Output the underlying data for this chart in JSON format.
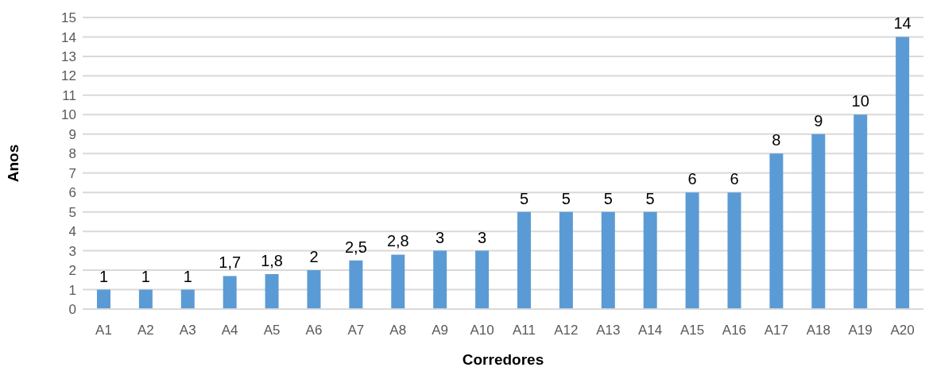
{
  "chart_data": {
    "type": "bar",
    "xlabel": "Corredores",
    "ylabel": "Anos",
    "categories": [
      "A1",
      "A2",
      "A3",
      "A4",
      "A5",
      "A6",
      "A7",
      "A8",
      "A9",
      "A10",
      "A11",
      "A12",
      "A13",
      "A14",
      "A15",
      "A16",
      "A17",
      "A18",
      "A19",
      "A20"
    ],
    "values": [
      1,
      1,
      1,
      1.7,
      1.8,
      2,
      2.5,
      2.8,
      3,
      3,
      5,
      5,
      5,
      5,
      6,
      6,
      8,
      9,
      10,
      14
    ],
    "value_labels": [
      "1",
      "1",
      "1",
      "1,7",
      "1,8",
      "2",
      "2,5",
      "2,8",
      "3",
      "3",
      "5",
      "5",
      "5",
      "5",
      "6",
      "6",
      "8",
      "9",
      "10",
      "14"
    ],
    "color": "#5b9bd5",
    "ylim": [
      0,
      15
    ],
    "yticks": [
      0,
      1,
      2,
      3,
      4,
      5,
      6,
      7,
      8,
      9,
      10,
      11,
      12,
      13,
      14,
      15
    ],
    "grid": "y"
  }
}
